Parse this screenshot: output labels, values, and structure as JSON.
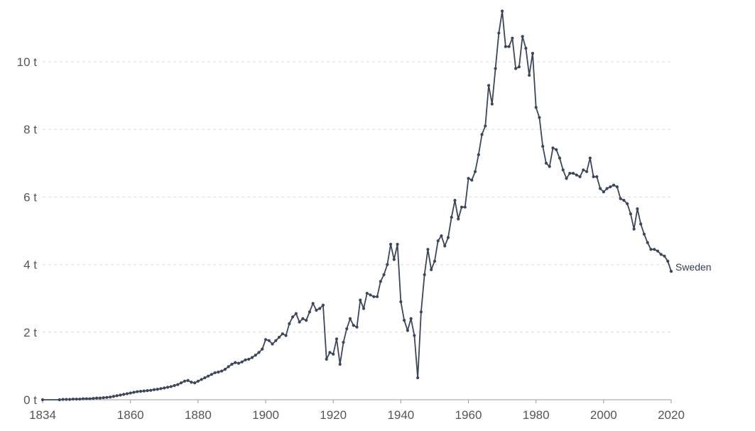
{
  "chart_data": {
    "type": "line",
    "title": "",
    "xlabel": "",
    "ylabel": "",
    "xlim": [
      1834,
      2020
    ],
    "ylim": [
      0,
      11.5
    ],
    "grid": true,
    "y_ticks": [
      {
        "value": 0,
        "label": "0 t"
      },
      {
        "value": 2,
        "label": "2 t"
      },
      {
        "value": 4,
        "label": "4 t"
      },
      {
        "value": 6,
        "label": "6 t"
      },
      {
        "value": 8,
        "label": "8 t"
      },
      {
        "value": 10,
        "label": "10 t"
      }
    ],
    "x_ticks": [
      {
        "value": 1834,
        "label": "1834"
      },
      {
        "value": 1860,
        "label": "1860"
      },
      {
        "value": 1880,
        "label": "1880"
      },
      {
        "value": 1900,
        "label": "1900"
      },
      {
        "value": 1920,
        "label": "1920"
      },
      {
        "value": 1940,
        "label": "1940"
      },
      {
        "value": 1960,
        "label": "1960"
      },
      {
        "value": 1980,
        "label": "1980"
      },
      {
        "value": 2000,
        "label": "2000"
      },
      {
        "value": 2020,
        "label": "2020"
      }
    ],
    "series": [
      {
        "name": "Sweden",
        "color": "#3b4658",
        "points": [
          [
            1834,
            0.0
          ],
          [
            1839,
            0.0
          ],
          [
            1840,
            0.01
          ],
          [
            1841,
            0.01
          ],
          [
            1842,
            0.01
          ],
          [
            1843,
            0.02
          ],
          [
            1844,
            0.02
          ],
          [
            1845,
            0.02
          ],
          [
            1846,
            0.03
          ],
          [
            1847,
            0.03
          ],
          [
            1848,
            0.03
          ],
          [
            1849,
            0.04
          ],
          [
            1850,
            0.05
          ],
          [
            1851,
            0.05
          ],
          [
            1852,
            0.06
          ],
          [
            1853,
            0.07
          ],
          [
            1854,
            0.08
          ],
          [
            1855,
            0.1
          ],
          [
            1856,
            0.12
          ],
          [
            1857,
            0.14
          ],
          [
            1858,
            0.16
          ],
          [
            1859,
            0.18
          ],
          [
            1860,
            0.2
          ],
          [
            1861,
            0.22
          ],
          [
            1862,
            0.24
          ],
          [
            1863,
            0.25
          ],
          [
            1864,
            0.26
          ],
          [
            1865,
            0.27
          ],
          [
            1866,
            0.28
          ],
          [
            1867,
            0.3
          ],
          [
            1868,
            0.31
          ],
          [
            1869,
            0.33
          ],
          [
            1870,
            0.35
          ],
          [
            1871,
            0.37
          ],
          [
            1872,
            0.39
          ],
          [
            1873,
            0.42
          ],
          [
            1874,
            0.45
          ],
          [
            1875,
            0.5
          ],
          [
            1876,
            0.55
          ],
          [
            1877,
            0.57
          ],
          [
            1878,
            0.52
          ],
          [
            1879,
            0.5
          ],
          [
            1880,
            0.55
          ],
          [
            1881,
            0.6
          ],
          [
            1882,
            0.65
          ],
          [
            1883,
            0.7
          ],
          [
            1884,
            0.75
          ],
          [
            1885,
            0.8
          ],
          [
            1886,
            0.82
          ],
          [
            1887,
            0.85
          ],
          [
            1888,
            0.9
          ],
          [
            1889,
            0.98
          ],
          [
            1890,
            1.05
          ],
          [
            1891,
            1.1
          ],
          [
            1892,
            1.08
          ],
          [
            1893,
            1.12
          ],
          [
            1894,
            1.18
          ],
          [
            1895,
            1.2
          ],
          [
            1896,
            1.25
          ],
          [
            1897,
            1.32
          ],
          [
            1898,
            1.4
          ],
          [
            1899,
            1.5
          ],
          [
            1900,
            1.78
          ],
          [
            1901,
            1.75
          ],
          [
            1902,
            1.65
          ],
          [
            1903,
            1.75
          ],
          [
            1904,
            1.85
          ],
          [
            1905,
            1.95
          ],
          [
            1906,
            1.9
          ],
          [
            1907,
            2.25
          ],
          [
            1908,
            2.45
          ],
          [
            1909,
            2.55
          ],
          [
            1910,
            2.3
          ],
          [
            1911,
            2.4
          ],
          [
            1912,
            2.35
          ],
          [
            1913,
            2.6
          ],
          [
            1914,
            2.85
          ],
          [
            1915,
            2.65
          ],
          [
            1916,
            2.7
          ],
          [
            1917,
            2.8
          ],
          [
            1918,
            1.2
          ],
          [
            1919,
            1.4
          ],
          [
            1920,
            1.35
          ],
          [
            1921,
            1.8
          ],
          [
            1922,
            1.05
          ],
          [
            1923,
            1.7
          ],
          [
            1924,
            2.1
          ],
          [
            1925,
            2.4
          ],
          [
            1926,
            2.2
          ],
          [
            1927,
            2.15
          ],
          [
            1928,
            2.95
          ],
          [
            1929,
            2.7
          ],
          [
            1930,
            3.15
          ],
          [
            1931,
            3.1
          ],
          [
            1932,
            3.05
          ],
          [
            1933,
            3.05
          ],
          [
            1934,
            3.5
          ],
          [
            1935,
            3.7
          ],
          [
            1936,
            4.0
          ],
          [
            1937,
            4.6
          ],
          [
            1938,
            4.15
          ],
          [
            1939,
            4.6
          ],
          [
            1940,
            2.9
          ],
          [
            1941,
            2.35
          ],
          [
            1942,
            2.05
          ],
          [
            1943,
            2.4
          ],
          [
            1944,
            1.9
          ],
          [
            1945,
            0.65
          ],
          [
            1946,
            2.6
          ],
          [
            1947,
            3.7
          ],
          [
            1948,
            4.45
          ],
          [
            1949,
            3.85
          ],
          [
            1950,
            4.1
          ],
          [
            1951,
            4.7
          ],
          [
            1952,
            4.85
          ],
          [
            1953,
            4.55
          ],
          [
            1954,
            4.8
          ],
          [
            1955,
            5.4
          ],
          [
            1956,
            5.9
          ],
          [
            1957,
            5.35
          ],
          [
            1958,
            5.7
          ],
          [
            1959,
            5.7
          ],
          [
            1960,
            6.55
          ],
          [
            1961,
            6.5
          ],
          [
            1962,
            6.75
          ],
          [
            1963,
            7.25
          ],
          [
            1964,
            7.85
          ],
          [
            1965,
            8.1
          ],
          [
            1966,
            9.3
          ],
          [
            1967,
            8.75
          ],
          [
            1968,
            9.8
          ],
          [
            1969,
            10.85
          ],
          [
            1970,
            11.5
          ],
          [
            1971,
            10.45
          ],
          [
            1972,
            10.45
          ],
          [
            1973,
            10.7
          ],
          [
            1974,
            9.8
          ],
          [
            1975,
            9.85
          ],
          [
            1976,
            10.75
          ],
          [
            1977,
            10.4
          ],
          [
            1978,
            9.6
          ],
          [
            1979,
            10.25
          ],
          [
            1980,
            8.65
          ],
          [
            1981,
            8.35
          ],
          [
            1982,
            7.5
          ],
          [
            1983,
            7.0
          ],
          [
            1984,
            6.9
          ],
          [
            1985,
            7.45
          ],
          [
            1986,
            7.4
          ],
          [
            1987,
            7.15
          ],
          [
            1988,
            6.8
          ],
          [
            1989,
            6.55
          ],
          [
            1990,
            6.7
          ],
          [
            1991,
            6.7
          ],
          [
            1992,
            6.65
          ],
          [
            1993,
            6.6
          ],
          [
            1994,
            6.8
          ],
          [
            1995,
            6.75
          ],
          [
            1996,
            7.15
          ],
          [
            1997,
            6.6
          ],
          [
            1998,
            6.6
          ],
          [
            1999,
            6.25
          ],
          [
            2000,
            6.15
          ],
          [
            2001,
            6.25
          ],
          [
            2002,
            6.3
          ],
          [
            2003,
            6.35
          ],
          [
            2004,
            6.3
          ],
          [
            2005,
            5.95
          ],
          [
            2006,
            5.9
          ],
          [
            2007,
            5.8
          ],
          [
            2008,
            5.5
          ],
          [
            2009,
            5.05
          ],
          [
            2010,
            5.65
          ],
          [
            2011,
            5.2
          ],
          [
            2012,
            4.9
          ],
          [
            2013,
            4.65
          ],
          [
            2014,
            4.45
          ],
          [
            2015,
            4.45
          ],
          [
            2016,
            4.4
          ],
          [
            2017,
            4.3
          ],
          [
            2018,
            4.25
          ],
          [
            2019,
            4.1
          ],
          [
            2020,
            3.8
          ]
        ]
      }
    ]
  }
}
